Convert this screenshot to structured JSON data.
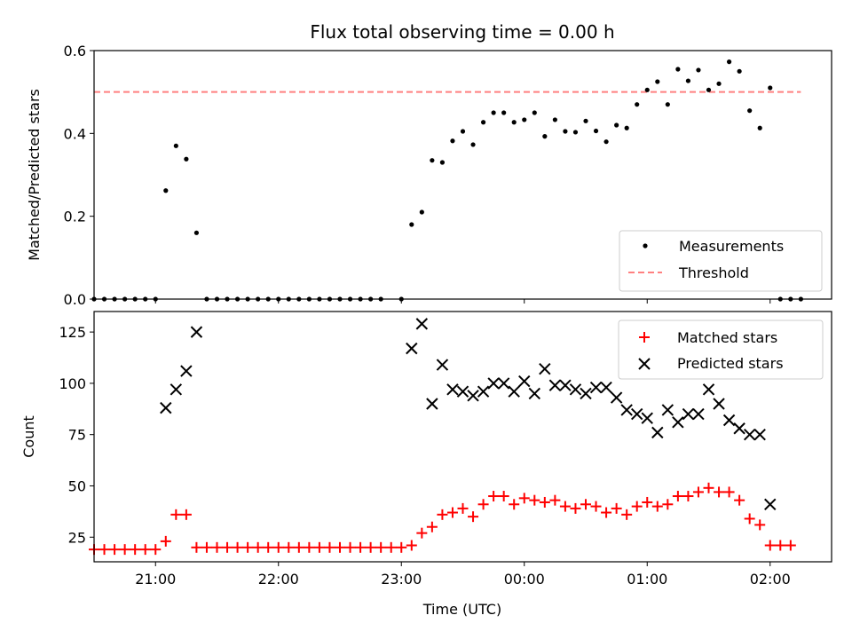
{
  "chart_data": [
    {
      "type": "scatter",
      "title": "Flux total observing time = 0.00 h",
      "ylabel": "Matched/Predicted stars",
      "xlabel": "",
      "x_unit": "hours (UTC) relative to midnight",
      "xlim": [
        "20:30",
        "02:30"
      ],
      "ylim": [
        0,
        0.6
      ],
      "yticks": [
        "0.0",
        "0.2",
        "0.4",
        "0.6"
      ],
      "legend_position": "lower-right",
      "legend": [
        "Measurements",
        "Threshold"
      ],
      "threshold": {
        "name": "Threshold",
        "value": 0.5,
        "x_start": "20:30",
        "x_end": "02:15",
        "color": "#ff8080"
      },
      "series": [
        {
          "name": "Measurements",
          "color": "#000000",
          "points": [
            [
              "20:30",
              0
            ],
            [
              "20:35",
              0
            ],
            [
              "20:40",
              0
            ],
            [
              "20:45",
              0
            ],
            [
              "20:50",
              0
            ],
            [
              "20:55",
              0
            ],
            [
              "21:00",
              0
            ],
            [
              "21:05",
              0.262
            ],
            [
              "21:10",
              0.37
            ],
            [
              "21:15",
              0.338
            ],
            [
              "21:20",
              0.16
            ],
            [
              "21:25",
              0
            ],
            [
              "21:30",
              0
            ],
            [
              "21:35",
              0
            ],
            [
              "21:40",
              0
            ],
            [
              "21:45",
              0
            ],
            [
              "21:50",
              0
            ],
            [
              "21:55",
              0
            ],
            [
              "22:00",
              0
            ],
            [
              "22:05",
              0
            ],
            [
              "22:10",
              0
            ],
            [
              "22:15",
              0
            ],
            [
              "22:20",
              0
            ],
            [
              "22:25",
              0
            ],
            [
              "22:30",
              0
            ],
            [
              "22:35",
              0
            ],
            [
              "22:40",
              0
            ],
            [
              "22:45",
              0
            ],
            [
              "22:50",
              0
            ],
            [
              "23:00",
              0
            ],
            [
              "23:05",
              0.18
            ],
            [
              "23:10",
              0.21
            ],
            [
              "23:15",
              0.335
            ],
            [
              "23:20",
              0.33
            ],
            [
              "23:25",
              0.382
            ],
            [
              "23:30",
              0.405
            ],
            [
              "23:35",
              0.373
            ],
            [
              "23:40",
              0.427
            ],
            [
              "23:45",
              0.45
            ],
            [
              "23:50",
              0.45
            ],
            [
              "23:55",
              0.427
            ],
            [
              "00:00",
              0.433
            ],
            [
              "00:05",
              0.45
            ],
            [
              "00:10",
              0.393
            ],
            [
              "00:15",
              0.433
            ],
            [
              "00:20",
              0.405
            ],
            [
              "00:25",
              0.403
            ],
            [
              "00:30",
              0.43
            ],
            [
              "00:35",
              0.406
            ],
            [
              "00:40",
              0.38
            ],
            [
              "00:45",
              0.42
            ],
            [
              "00:50",
              0.413
            ],
            [
              "00:55",
              0.47
            ],
            [
              "01:00",
              0.505
            ],
            [
              "01:05",
              0.525
            ],
            [
              "01:10",
              0.47
            ],
            [
              "01:15",
              0.555
            ],
            [
              "01:20",
              0.527
            ],
            [
              "01:25",
              0.553
            ],
            [
              "01:30",
              0.505
            ],
            [
              "01:35",
              0.52
            ],
            [
              "01:40",
              0.573
            ],
            [
              "01:45",
              0.55
            ],
            [
              "01:50",
              0.455
            ],
            [
              "01:55",
              0.413
            ],
            [
              "02:00",
              0.51
            ],
            [
              "02:05",
              0
            ],
            [
              "02:10",
              0
            ],
            [
              "02:15",
              0
            ]
          ]
        }
      ]
    },
    {
      "type": "scatter",
      "title": "",
      "ylabel": "Count",
      "xlabel": "Time (UTC)",
      "xlim": [
        "20:30",
        "02:30"
      ],
      "ylim": [
        13,
        135
      ],
      "yticks": [
        "25",
        "50",
        "75",
        "100",
        "125"
      ],
      "xticks": [
        "21:00",
        "22:00",
        "23:00",
        "00:00",
        "01:00",
        "02:00"
      ],
      "legend_position": "upper-right",
      "legend": [
        "Matched stars",
        "Predicted stars"
      ],
      "series": [
        {
          "name": "Matched stars",
          "marker": "plus",
          "color": "#ff0000",
          "points": [
            [
              "20:30",
              19
            ],
            [
              "20:35",
              19
            ],
            [
              "20:40",
              19
            ],
            [
              "20:45",
              19
            ],
            [
              "20:50",
              19
            ],
            [
              "20:55",
              19
            ],
            [
              "21:00",
              19
            ],
            [
              "21:05",
              23
            ],
            [
              "21:10",
              36
            ],
            [
              "21:15",
              36
            ],
            [
              "21:20",
              20
            ],
            [
              "21:25",
              20
            ],
            [
              "21:30",
              20
            ],
            [
              "21:35",
              20
            ],
            [
              "21:40",
              20
            ],
            [
              "21:45",
              20
            ],
            [
              "21:50",
              20
            ],
            [
              "21:55",
              20
            ],
            [
              "22:00",
              20
            ],
            [
              "22:05",
              20
            ],
            [
              "22:10",
              20
            ],
            [
              "22:15",
              20
            ],
            [
              "22:20",
              20
            ],
            [
              "22:25",
              20
            ],
            [
              "22:30",
              20
            ],
            [
              "22:35",
              20
            ],
            [
              "22:40",
              20
            ],
            [
              "22:45",
              20
            ],
            [
              "22:50",
              20
            ],
            [
              "22:55",
              20
            ],
            [
              "23:00",
              20
            ],
            [
              "23:05",
              21
            ],
            [
              "23:10",
              27
            ],
            [
              "23:15",
              30
            ],
            [
              "23:20",
              36
            ],
            [
              "23:25",
              37
            ],
            [
              "23:30",
              39
            ],
            [
              "23:35",
              35
            ],
            [
              "23:40",
              41
            ],
            [
              "23:45",
              45
            ],
            [
              "23:50",
              45
            ],
            [
              "23:55",
              41
            ],
            [
              "00:00",
              44
            ],
            [
              "00:05",
              43
            ],
            [
              "00:10",
              42
            ],
            [
              "00:15",
              43
            ],
            [
              "00:20",
              40
            ],
            [
              "00:25",
              39
            ],
            [
              "00:30",
              41
            ],
            [
              "00:35",
              40
            ],
            [
              "00:40",
              37
            ],
            [
              "00:45",
              39
            ],
            [
              "00:50",
              36
            ],
            [
              "00:55",
              40
            ],
            [
              "01:00",
              42
            ],
            [
              "01:05",
              40
            ],
            [
              "01:10",
              41
            ],
            [
              "01:15",
              45
            ],
            [
              "01:20",
              45
            ],
            [
              "01:25",
              47
            ],
            [
              "01:30",
              49
            ],
            [
              "01:35",
              47
            ],
            [
              "01:40",
              47
            ],
            [
              "01:45",
              43
            ],
            [
              "01:50",
              34
            ],
            [
              "01:55",
              31
            ],
            [
              "02:00",
              21
            ],
            [
              "02:05",
              21
            ],
            [
              "02:10",
              21
            ]
          ]
        },
        {
          "name": "Predicted stars",
          "marker": "x",
          "color": "#000000",
          "points": [
            [
              "21:05",
              88
            ],
            [
              "21:10",
              97
            ],
            [
              "21:15",
              106
            ],
            [
              "21:20",
              125
            ],
            [
              "23:05",
              117
            ],
            [
              "23:10",
              129
            ],
            [
              "23:15",
              90
            ],
            [
              "23:20",
              109
            ],
            [
              "23:25",
              97
            ],
            [
              "23:30",
              96
            ],
            [
              "23:35",
              94
            ],
            [
              "23:40",
              96
            ],
            [
              "23:45",
              100
            ],
            [
              "23:50",
              100
            ],
            [
              "23:55",
              96
            ],
            [
              "00:00",
              101
            ],
            [
              "00:05",
              95
            ],
            [
              "00:10",
              107
            ],
            [
              "00:15",
              99
            ],
            [
              "00:20",
              99
            ],
            [
              "00:25",
              97
            ],
            [
              "00:30",
              95
            ],
            [
              "00:35",
              98
            ],
            [
              "00:40",
              98
            ],
            [
              "00:45",
              93
            ],
            [
              "00:50",
              87
            ],
            [
              "00:55",
              85
            ],
            [
              "01:00",
              83
            ],
            [
              "01:05",
              76
            ],
            [
              "01:10",
              87
            ],
            [
              "01:15",
              81
            ],
            [
              "01:20",
              85
            ],
            [
              "01:25",
              85
            ],
            [
              "01:30",
              97
            ],
            [
              "01:35",
              90
            ],
            [
              "01:40",
              82
            ],
            [
              "01:45",
              78
            ],
            [
              "01:50",
              75
            ],
            [
              "01:55",
              75
            ],
            [
              "02:00",
              41
            ]
          ]
        }
      ]
    }
  ]
}
